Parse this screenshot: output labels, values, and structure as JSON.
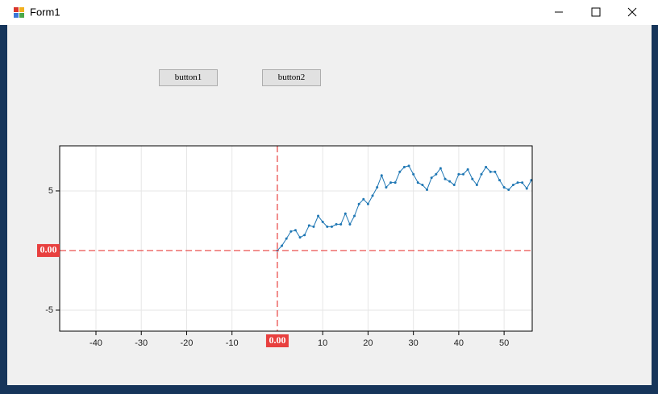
{
  "window": {
    "title": "Form1"
  },
  "buttons": [
    "button1",
    "button2"
  ],
  "chart_data": {
    "type": "line",
    "x": [
      0,
      1,
      2,
      3,
      4,
      5,
      6,
      7,
      8,
      9,
      10,
      11,
      12,
      13,
      14,
      15,
      16,
      17,
      18,
      19,
      20,
      21,
      22,
      23,
      24,
      25,
      26,
      27,
      28,
      29,
      30,
      31,
      32,
      33,
      34,
      35,
      36,
      37,
      38,
      39,
      40,
      41,
      42,
      43,
      44,
      45,
      46,
      47,
      48,
      49,
      50,
      51,
      52,
      53,
      54,
      55,
      56
    ],
    "series": [
      {
        "color": "#1f77b4",
        "values": [
          0,
          0.4,
          1.0,
          1.6,
          1.7,
          1.1,
          1.3,
          2.1,
          2.0,
          2.9,
          2.4,
          2.0,
          2.0,
          2.2,
          2.2,
          3.1,
          2.2,
          2.9,
          3.9,
          4.3,
          3.9,
          4.6,
          5.3,
          6.3,
          5.3,
          5.7,
          5.7,
          6.6,
          7.0,
          7.1,
          6.4,
          5.7,
          5.5,
          5.1,
          6.1,
          6.4,
          6.9,
          6.0,
          5.8,
          5.5,
          6.4,
          6.4,
          6.8,
          6.0,
          5.5,
          6.4,
          7.0,
          6.6,
          6.6,
          5.9,
          5.3,
          5.1,
          5.5,
          5.7,
          5.7,
          5.2,
          5.9
        ]
      }
    ],
    "xlim": [
      -48,
      56.2
    ],
    "ylim": [
      -6.76,
      8.78
    ],
    "xticks": [
      -40,
      -30,
      -20,
      -10,
      10,
      20,
      30,
      40,
      50
    ],
    "yticks": [
      -5,
      5
    ],
    "grid": true,
    "cursor": {
      "x": 0,
      "y": 0,
      "x_label": "0.00",
      "y_label": "0.00",
      "color": "#e8403f"
    }
  }
}
